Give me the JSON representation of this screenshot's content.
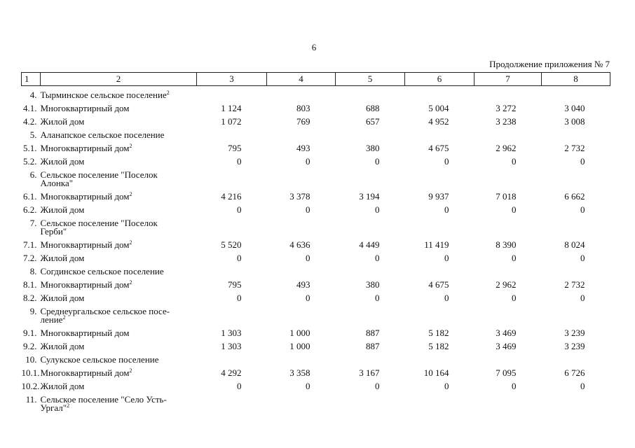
{
  "page_number": "6",
  "caption": "Продолжение приложения № 7",
  "table": {
    "header": [
      "1",
      "2",
      "3",
      "4",
      "5",
      "6",
      "7",
      "8"
    ],
    "rows": [
      {
        "num": "4.",
        "name": [
          "Тырминское сельское поселение"
        ],
        "note": "2"
      },
      {
        "num": "4.1.",
        "name": [
          "Многоквартирный дом"
        ],
        "values": [
          "1 124",
          "803",
          "688",
          "5 004",
          "3 272",
          "3 040"
        ]
      },
      {
        "num": "4.2.",
        "name": [
          "Жилой дом"
        ],
        "values": [
          "1 072",
          "769",
          "657",
          "4 952",
          "3 238",
          "3 008"
        ]
      },
      {
        "num": "5.",
        "name": [
          "Аланапское сельское поселение"
        ]
      },
      {
        "num": "5.1.",
        "name": [
          "Многоквартирный дом"
        ],
        "note": "2",
        "values": [
          "795",
          "493",
          "380",
          "4 675",
          "2 962",
          "2 732"
        ]
      },
      {
        "num": "5.2.",
        "name": [
          "Жилой дом"
        ],
        "values": [
          "0",
          "0",
          "0",
          "0",
          "0",
          "0"
        ]
      },
      {
        "num": "6.",
        "name": [
          "Сельское поселение \"Поселок",
          "Алонка\""
        ]
      },
      {
        "num": "6.1.",
        "name": [
          "Многоквартирный дом"
        ],
        "note": "2",
        "values": [
          "4 216",
          "3 378",
          "3 194",
          "9 937",
          "7 018",
          "6 662"
        ]
      },
      {
        "num": "6.2.",
        "name": [
          "Жилой дом"
        ],
        "values": [
          "0",
          "0",
          "0",
          "0",
          "0",
          "0"
        ]
      },
      {
        "num": "7.",
        "name": [
          "Сельское поселение \"Поселок",
          "Герби\""
        ]
      },
      {
        "num": "7.1.",
        "name": [
          "Многоквартирный дом"
        ],
        "note": "2",
        "values": [
          "5 520",
          "4 636",
          "4 449",
          "11 419",
          "8 390",
          "8 024"
        ]
      },
      {
        "num": "7.2.",
        "name": [
          "Жилой дом"
        ],
        "values": [
          "0",
          "0",
          "0",
          "0",
          "0",
          "0"
        ]
      },
      {
        "num": "8.",
        "name": [
          "Согдинское сельское поселение"
        ]
      },
      {
        "num": "8.1.",
        "name": [
          "Многоквартирный дом"
        ],
        "note": "2",
        "values": [
          "795",
          "493",
          "380",
          "4 675",
          "2 962",
          "2 732"
        ]
      },
      {
        "num": "8.2.",
        "name": [
          "Жилой дом"
        ],
        "values": [
          "0",
          "0",
          "0",
          "0",
          "0",
          "0"
        ]
      },
      {
        "num": "9.",
        "name": [
          "Среднеургальское сельское посе-",
          "ление"
        ],
        "note": "2"
      },
      {
        "num": "9.1.",
        "name": [
          "Многоквартирный дом"
        ],
        "values": [
          "1 303",
          "1 000",
          "887",
          "5 182",
          "3 469",
          "3 239"
        ]
      },
      {
        "num": "9.2.",
        "name": [
          "Жилой дом"
        ],
        "values": [
          "1 303",
          "1 000",
          "887",
          "5 182",
          "3 469",
          "3 239"
        ]
      },
      {
        "num": "10.",
        "name": [
          "Сулукское сельское поселение"
        ]
      },
      {
        "num": "10.1.",
        "name": [
          "Многоквартирный дом"
        ],
        "note": "2",
        "values": [
          "4 292",
          "3 358",
          "3 167",
          "10 164",
          "7 095",
          "6 726"
        ]
      },
      {
        "num": "10.2.",
        "name": [
          "Жилой дом"
        ],
        "values": [
          "0",
          "0",
          "0",
          "0",
          "0",
          "0"
        ]
      },
      {
        "num": "11.",
        "name": [
          "Сельское поселение \"Село Усть-",
          "Ургал\""
        ],
        "note": "2"
      }
    ]
  }
}
